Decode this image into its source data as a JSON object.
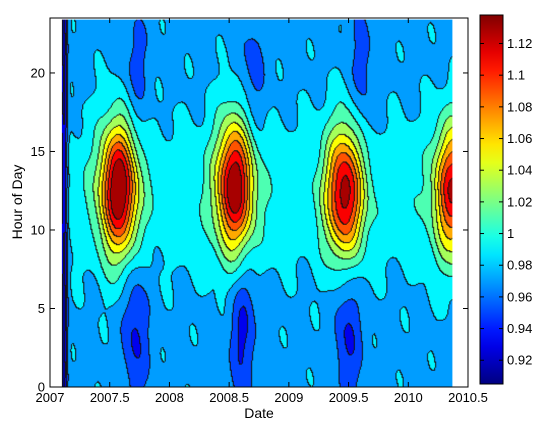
{
  "chart_data": {
    "type": "heatmap",
    "title": "",
    "xlabel": "Date",
    "ylabel": "Hour of Day",
    "xlim": [
      2007,
      2010.5
    ],
    "ylim": [
      0,
      23.5
    ],
    "x_data_range": [
      2007.1,
      2010.37
    ],
    "y_data_range": [
      0,
      23.4
    ],
    "xticks": [
      "2007",
      "2007.5",
      "2008",
      "2008.5",
      "2009",
      "2009.5",
      "2010",
      "2010.5"
    ],
    "yticks": [
      "0",
      "5",
      "10",
      "15",
      "20"
    ],
    "colorbar": {
      "colormap": "jet",
      "range": [
        0.905,
        1.138
      ],
      "ticks": [
        "0.92",
        "0.94",
        "0.96",
        "0.98",
        "1",
        "1.02",
        "1.04",
        "1.06",
        "1.08",
        "1.1",
        "1.12"
      ]
    },
    "contour_levels": [
      0.92,
      0.94,
      0.96,
      0.98,
      1.0,
      1.02,
      1.04,
      1.06,
      1.08,
      1.1,
      1.12
    ],
    "features": [
      {
        "kind": "peak",
        "x": 2007.58,
        "y": 12.6,
        "value": 1.13
      },
      {
        "kind": "peak",
        "x": 2008.55,
        "y": 12.8,
        "value": 1.125
      },
      {
        "kind": "peak",
        "x": 2009.47,
        "y": 12.3,
        "value": 1.115
      },
      {
        "kind": "peak",
        "x": 2010.38,
        "y": 12.5,
        "value": 1.105
      },
      {
        "kind": "trough",
        "x": 2007.12,
        "y": 12.0,
        "value": 0.91
      },
      {
        "kind": "trough",
        "x": 2007.72,
        "y": 3.5,
        "value": 0.935
      },
      {
        "kind": "trough",
        "x": 2008.62,
        "y": 3.5,
        "value": 0.935
      },
      {
        "kind": "trough",
        "x": 2009.5,
        "y": 3.5,
        "value": 0.935
      },
      {
        "kind": "trough",
        "x": 2007.72,
        "y": 20.0,
        "value": 0.95
      },
      {
        "kind": "trough",
        "x": 2008.7,
        "y": 20.0,
        "value": 0.95
      },
      {
        "kind": "trough",
        "x": 2009.62,
        "y": 20.0,
        "value": 0.95
      }
    ]
  }
}
